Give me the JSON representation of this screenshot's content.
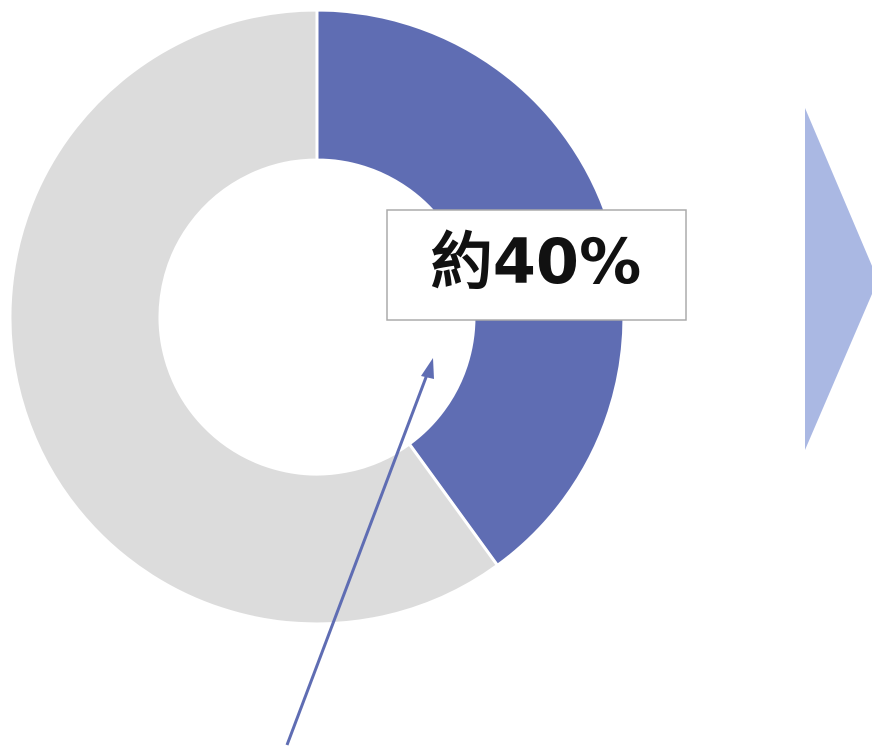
{
  "chart_data": {
    "type": "pie",
    "values": [
      40,
      60
    ],
    "value_labels": [
      "約40%",
      null
    ],
    "colors": [
      "#5f6db3",
      "#dcdcdc"
    ]
  }
}
